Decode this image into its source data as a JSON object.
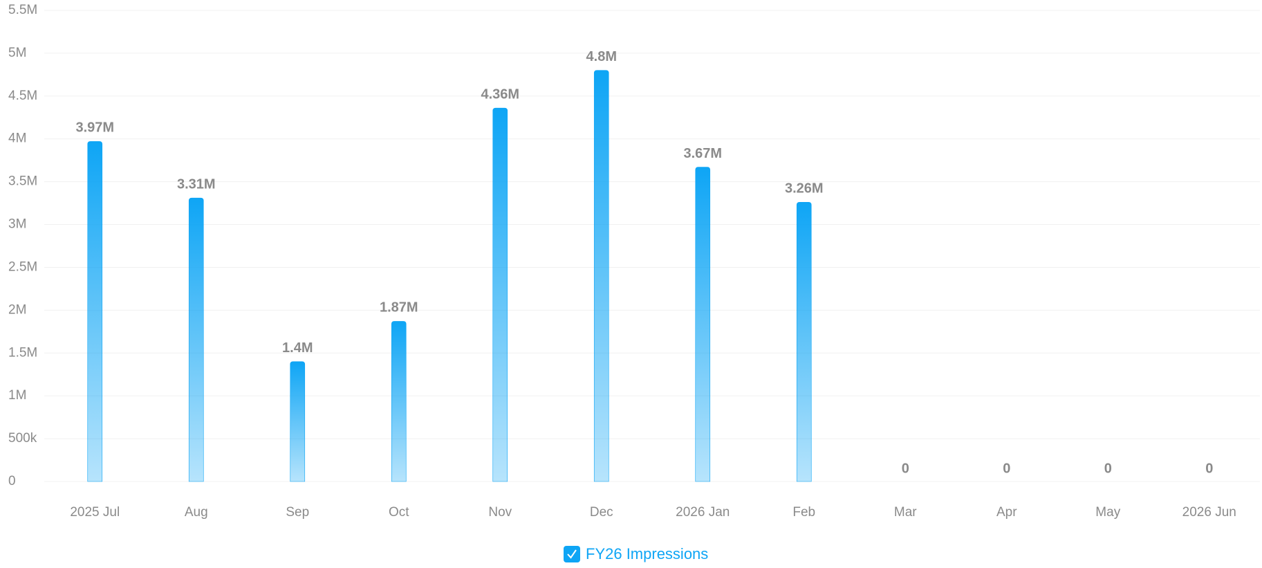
{
  "chart_data": {
    "type": "bar",
    "categories": [
      "2025 Jul",
      "Aug",
      "Sep",
      "Oct",
      "Nov",
      "Dec",
      "2026 Jan",
      "Feb",
      "Mar",
      "Apr",
      "May",
      "2026 Jun"
    ],
    "series": [
      {
        "name": "FY26 Impressions",
        "color": "#0ea5f5",
        "values": [
          3970000,
          3310000,
          1400000,
          1870000,
          4360000,
          4800000,
          3670000,
          3260000,
          0,
          0,
          0,
          0
        ],
        "value_labels": [
          "3.97M",
          "3.31M",
          "1.4M",
          "1.87M",
          "4.36M",
          "4.8M",
          "3.67M",
          "3.26M",
          "0",
          "0",
          "0",
          "0"
        ]
      }
    ],
    "ylim": [
      0,
      5500000
    ],
    "yticks": [
      0,
      {
        "value": 500000,
        "label": "500k"
      },
      {
        "value": 1000000,
        "label": "1M"
      },
      {
        "value": 1500000,
        "label": "1.5M"
      },
      {
        "value": 2000000,
        "label": "2M"
      },
      {
        "value": 2500000,
        "label": "2.5M"
      },
      {
        "value": 3000000,
        "label": "3M"
      },
      {
        "value": 3500000,
        "label": "3.5M"
      },
      {
        "value": 4000000,
        "label": "4M"
      },
      {
        "value": 4500000,
        "label": "4.5M"
      },
      {
        "value": 5000000,
        "label": "5M"
      },
      {
        "value": 5500000,
        "label": "5.5M"
      }
    ],
    "grid": true,
    "legend": "bottom"
  }
}
